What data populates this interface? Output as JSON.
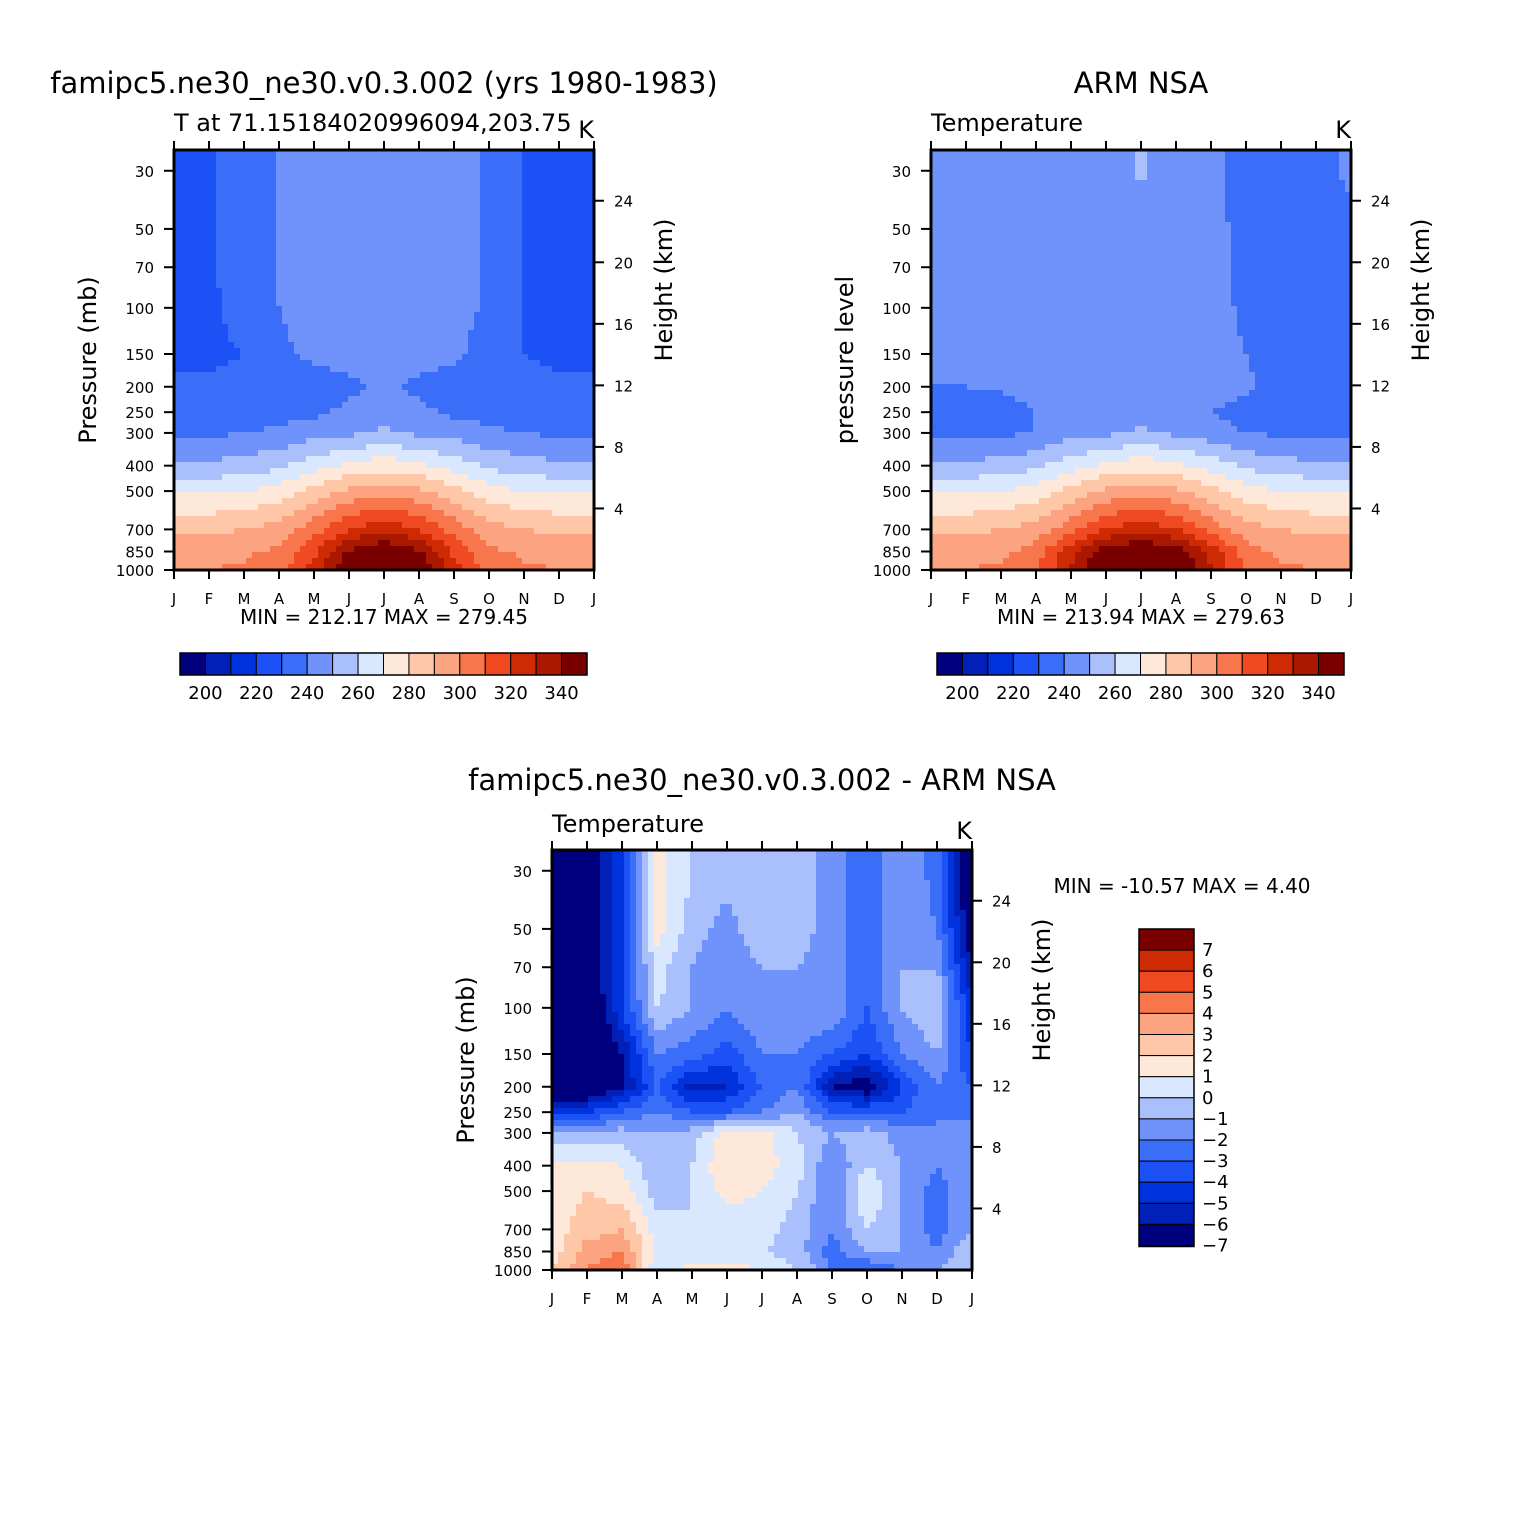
{
  "colors": {
    "full_scale": [
      "#00007f",
      "#0020b8",
      "#0033dd",
      "#1c52f5",
      "#3a6ef8",
      "#6f92fb",
      "#a9c0fd",
      "#d9e7ff",
      "#fee8d9",
      "#fdc7a8",
      "#fca381",
      "#f8764b",
      "#f04a22",
      "#ce2b05",
      "#ab1800",
      "#7a0000"
    ],
    "diff_scale": [
      "#00007f",
      "#0020b8",
      "#0033dd",
      "#1c52f5",
      "#3a6ef8",
      "#6f92fb",
      "#a9c0fd",
      "#d9e7ff",
      "#fee8d9",
      "#fdc7a8",
      "#fca381",
      "#f8764b",
      "#f04a22",
      "#ce2b05",
      "#7a0000"
    ]
  },
  "panels": {
    "model": {
      "title": "famipc5.ne30_ne30.v0.3.002 (yrs 1980-1983)",
      "left_label": "T at 71.15184020996094,203.75",
      "units": "K",
      "ylabel": "Pressure (mb)",
      "y2label": "Height (km)",
      "minmax": "MIN = 212.17 MAX = 279.45"
    },
    "obs": {
      "title": "ARM NSA",
      "left_label": "Temperature",
      "units": "K",
      "ylabel": "pressure level",
      "y2label": "Height (km)",
      "minmax": "MIN = 213.94 MAX = 279.63"
    },
    "diff": {
      "title": "famipc5.ne30_ne30.v0.3.002 - ARM NSA",
      "left_label": "Temperature",
      "units": "K",
      "ylabel": "Pressure (mb)",
      "y2label": "Height (km)",
      "minmax": "MIN = -10.57 MAX =    4.40"
    }
  },
  "axes": {
    "x_ticks": [
      "J",
      "F",
      "M",
      "A",
      "M",
      "J",
      "J",
      "A",
      "S",
      "O",
      "N",
      "D",
      "J"
    ],
    "pressure_ticks": [
      "30",
      "50",
      "70",
      "100",
      "150",
      "200",
      "250",
      "300",
      "400",
      "500",
      "700",
      "850",
      "1000"
    ],
    "height_ticks": [
      "24",
      "20",
      "16",
      "12",
      "8",
      "4"
    ],
    "full_colorbar_labels": [
      "200",
      "220",
      "240",
      "260",
      "280",
      "300",
      "320",
      "340"
    ],
    "diff_colorbar_labels": [
      "7",
      "6",
      "5",
      "4",
      "3",
      "2",
      "1",
      "0",
      "-1",
      "-2",
      "-3",
      "-4",
      "-5",
      "-6",
      "-7"
    ]
  },
  "chart_data": [
    {
      "type": "heatmap",
      "title": "famipc5.ne30_ne30.v0.3.002 (yrs 1980-1983)",
      "subtitle": "T at 71.15184020996094,203.75",
      "units": "K",
      "x": [
        "J",
        "F",
        "M",
        "A",
        "M",
        "J",
        "J",
        "A",
        "S",
        "O",
        "N",
        "D",
        "J"
      ],
      "y_pressure_mb": [
        30,
        50,
        70,
        100,
        150,
        200,
        250,
        300,
        400,
        500,
        700,
        850,
        1000
      ],
      "y_log": true,
      "levels": [
        200,
        205,
        210,
        215,
        220,
        225,
        230,
        235,
        240,
        245,
        250,
        255,
        260,
        265,
        270,
        275,
        280
      ],
      "zmin": 212.17,
      "zmax": 279.45,
      "values": [
        [
          214,
          214,
          219,
          220,
          222,
          222,
          222,
          222,
          222,
          219,
          215,
          214,
          214
        ],
        [
          214,
          214,
          219,
          220,
          222,
          222,
          222,
          222,
          222,
          219,
          215,
          214,
          214
        ],
        [
          214,
          214,
          218,
          220,
          222,
          222,
          222,
          222,
          222,
          219,
          215,
          214,
          214
        ],
        [
          214,
          214,
          217,
          220,
          222,
          222,
          222,
          222,
          222,
          219,
          215,
          214,
          214
        ],
        [
          214,
          214,
          215,
          219,
          221,
          222,
          222,
          222,
          221,
          218,
          215,
          214,
          214
        ],
        [
          216,
          216,
          216,
          217,
          218,
          219,
          221,
          219,
          218,
          217,
          216,
          216,
          216
        ],
        [
          217,
          217,
          217,
          218,
          219,
          221,
          223,
          221,
          219,
          218,
          217,
          217,
          217
        ],
        [
          219,
          219,
          220,
          221,
          223,
          224,
          226,
          224,
          223,
          221,
          220,
          219,
          219
        ],
        [
          226,
          226,
          227,
          229,
          233,
          236,
          238,
          236,
          233,
          229,
          227,
          226,
          226
        ],
        [
          234,
          234,
          235,
          237,
          242,
          246,
          248,
          246,
          242,
          237,
          235,
          234,
          234
        ],
        [
          244,
          244,
          245,
          247,
          253,
          260,
          263,
          260,
          253,
          247,
          245,
          244,
          244
        ],
        [
          248,
          248,
          249,
          251,
          259,
          271,
          275,
          271,
          259,
          251,
          249,
          248,
          248
        ],
        [
          250,
          250,
          251,
          253,
          262,
          276,
          279,
          276,
          262,
          253,
          251,
          250,
          250
        ]
      ]
    },
    {
      "type": "heatmap",
      "title": "ARM NSA",
      "subtitle": "Temperature",
      "units": "K",
      "x": [
        "J",
        "F",
        "M",
        "A",
        "M",
        "J",
        "J",
        "A",
        "S",
        "O",
        "N",
        "D",
        "J"
      ],
      "y_pressure_mb": [
        30,
        50,
        70,
        100,
        150,
        200,
        250,
        300,
        400,
        500,
        700,
        850,
        1000
      ],
      "y_log": true,
      "levels": [
        200,
        205,
        210,
        215,
        220,
        225,
        230,
        235,
        240,
        245,
        250,
        255,
        260,
        265,
        270,
        275,
        280
      ],
      "zmin": 213.94,
      "zmax": 279.63,
      "values": [
        [
          222,
          222,
          222,
          222,
          222,
          222,
          226,
          222,
          222,
          217,
          217,
          216,
          222
        ],
        [
          222,
          222,
          222,
          222,
          222,
          222,
          222,
          222,
          222,
          218,
          217,
          216,
          217
        ],
        [
          222,
          222,
          222,
          222,
          222,
          222,
          222,
          222,
          222,
          218,
          217,
          216,
          217
        ],
        [
          222,
          222,
          222,
          222,
          222,
          222,
          222,
          222,
          222,
          219,
          217,
          216,
          216
        ],
        [
          222,
          222,
          222,
          222,
          222,
          222,
          222,
          222,
          222,
          220,
          217,
          216,
          216
        ],
        [
          220,
          220,
          221,
          222,
          222,
          222,
          222,
          222,
          222,
          221,
          218,
          217,
          217
        ],
        [
          216,
          216,
          217,
          220,
          222,
          222,
          222,
          222,
          220,
          218,
          217,
          216,
          216
        ],
        [
          219,
          219,
          219,
          220,
          223,
          224,
          226,
          224,
          222,
          220,
          219,
          219,
          219
        ],
        [
          226,
          226,
          227,
          229,
          233,
          236,
          238,
          236,
          233,
          229,
          227,
          226,
          226
        ],
        [
          234,
          234,
          235,
          237,
          242,
          246,
          248,
          246,
          242,
          237,
          235,
          234,
          234
        ],
        [
          244,
          244,
          245,
          247,
          253,
          260,
          263,
          260,
          253,
          247,
          245,
          244,
          244
        ],
        [
          248,
          248,
          249,
          252,
          263,
          273,
          276,
          273,
          263,
          252,
          249,
          248,
          248
        ],
        [
          250,
          250,
          251,
          254,
          266,
          278,
          279,
          278,
          266,
          254,
          251,
          250,
          250
        ]
      ]
    },
    {
      "type": "heatmap",
      "title": "famipc5.ne30_ne30.v0.3.002 - ARM NSA",
      "subtitle": "Temperature",
      "units": "K",
      "x": [
        "J",
        "F",
        "M",
        "A",
        "M",
        "J",
        "J",
        "A",
        "S",
        "O",
        "N",
        "D",
        "J"
      ],
      "y_pressure_mb": [
        30,
        50,
        70,
        100,
        150,
        200,
        250,
        300,
        400,
        500,
        700,
        850,
        1000
      ],
      "y_log": true,
      "levels": [
        -7,
        -6,
        -5,
        -4,
        -3,
        -2,
        -1,
        0,
        1,
        2,
        3,
        4,
        5,
        6,
        7
      ],
      "zmin": -10.57,
      "zmax": 4.4,
      "values": [
        [
          -8,
          -8,
          -5,
          0.5,
          -1,
          -1.5,
          -1,
          -1.5,
          -2.5,
          -4,
          -2,
          -3.5,
          -9
        ],
        [
          -8,
          -8,
          -5,
          0.5,
          -1.5,
          -2.5,
          -1,
          -1.5,
          -2.5,
          -4,
          -2,
          -3,
          -8
        ],
        [
          -8,
          -8,
          -5,
          -0.5,
          -2,
          -3,
          -2,
          -2,
          -2.5,
          -4,
          -2,
          -2,
          -7
        ],
        [
          -9,
          -9,
          -5,
          -1,
          -2,
          -3,
          -2,
          -2.5,
          -2,
          -4,
          -2,
          -1,
          -6
        ],
        [
          -9,
          -9,
          -7,
          -3,
          -3.5,
          -4.5,
          -3,
          -3,
          -4,
          -5,
          -3,
          -2,
          -5
        ],
        [
          -9,
          -9,
          -7,
          -4,
          -6.5,
          -6,
          -4,
          -3,
          -7,
          -8,
          -5,
          -3,
          -4
        ],
        [
          -5,
          -5,
          -4,
          -3,
          -4,
          -4,
          -3,
          -2,
          -4,
          -4,
          -4,
          -3,
          -4
        ],
        [
          -2,
          -2,
          -1.5,
          -2,
          -1.5,
          0.5,
          0.5,
          -1,
          -2,
          -1.5,
          -2.5,
          -3,
          -2
        ],
        [
          0.5,
          0.5,
          0,
          -2,
          -1,
          1,
          0.5,
          -0.5,
          -3,
          -1,
          -2,
          -3,
          -2
        ],
        [
          0.5,
          1,
          0.5,
          -1.5,
          -1,
          0.5,
          0,
          -1,
          -3,
          0,
          -2,
          -3.5,
          -2
        ],
        [
          0.5,
          1.5,
          2,
          -0.5,
          -1,
          -1,
          -0.5,
          -1.5,
          -3,
          -1,
          -2,
          -3.5,
          -2
        ],
        [
          0.5,
          2.5,
          3,
          0,
          -1,
          -1,
          -1,
          -1.5,
          -3.5,
          -2,
          -2,
          -3,
          -1
        ],
        [
          1,
          3,
          4,
          -1,
          0.5,
          0.5,
          0,
          -1,
          -3,
          -4,
          -3,
          -2,
          -1
        ]
      ]
    }
  ]
}
